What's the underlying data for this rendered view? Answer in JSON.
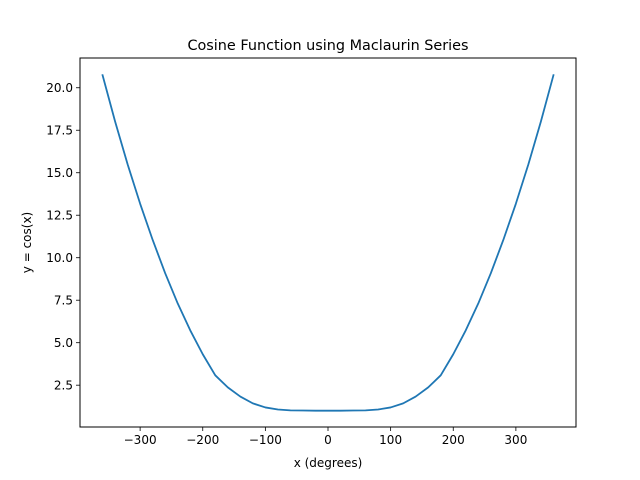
{
  "chart_data": {
    "type": "line",
    "title": "Cosine Function using Maclaurin Series",
    "xlabel": "x (degrees)",
    "ylabel": "y = cos(x)",
    "xlim": [
      -396,
      396
    ],
    "ylim": [
      0.04,
      21.75
    ],
    "x_ticks": [
      -300,
      -200,
      -100,
      0,
      100,
      200,
      300
    ],
    "x_tick_labels": [
      "−300",
      "−200",
      "−100",
      "0",
      "100",
      "200",
      "300"
    ],
    "y_ticks": [
      2.5,
      5.0,
      7.5,
      10.0,
      12.5,
      15.0,
      17.5,
      20.0
    ],
    "y_tick_labels": [
      "2.5",
      "5.0",
      "7.5",
      "10.0",
      "12.5",
      "15.0",
      "17.5",
      "20.0"
    ],
    "grid": false,
    "legend": "none",
    "series": [
      {
        "color": "#1f77b4",
        "x": [
          -360,
          -340,
          -320,
          -300,
          -280,
          -260,
          -240,
          -220,
          -200,
          -180,
          -160,
          -140,
          -120,
          -100,
          -80,
          -60,
          -40,
          -20,
          0,
          20,
          40,
          60,
          80,
          100,
          120,
          140,
          160,
          180,
          200,
          220,
          240,
          260,
          280,
          300,
          320,
          340,
          360
        ],
        "y": [
          20.74,
          18.02,
          15.5,
          13.18,
          11.05,
          9.09,
          7.31,
          5.73,
          4.32,
          3.08,
          2.37,
          1.83,
          1.43,
          1.19,
          1.07,
          1.02,
          1.01,
          1.0,
          1.0,
          1.0,
          1.01,
          1.02,
          1.07,
          1.19,
          1.43,
          1.83,
          2.37,
          3.08,
          4.32,
          5.73,
          7.31,
          9.09,
          11.05,
          13.18,
          15.5,
          18.02,
          20.74
        ]
      }
    ]
  }
}
